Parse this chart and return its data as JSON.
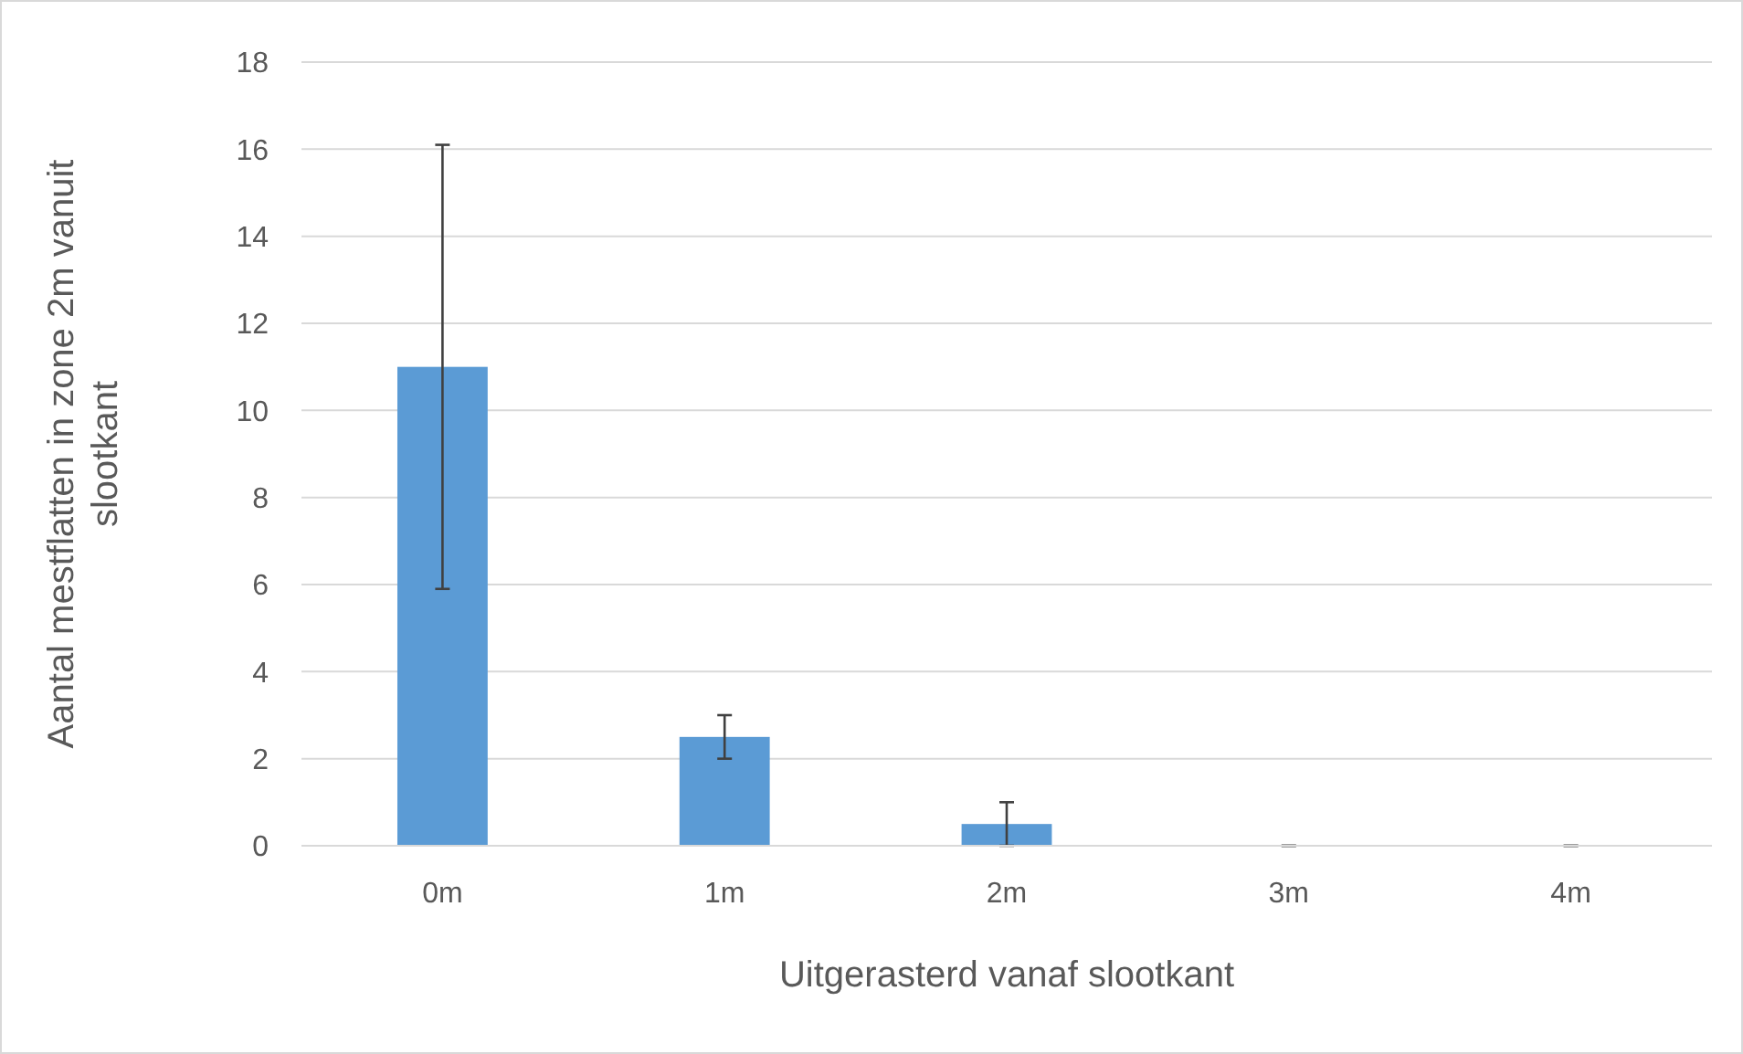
{
  "chart_data": {
    "type": "bar",
    "xlabel": "Uitgerasterd vanaf slootkant",
    "ylabel": "Aantal mestflatten in zone 2m vanuit slootkant",
    "categories": [
      "0m",
      "1m",
      "2m",
      "3m",
      "4m"
    ],
    "values": [
      11,
      2.5,
      0.5,
      0,
      0
    ],
    "errors": [
      5.1,
      0.5,
      0.5,
      0,
      0
    ],
    "color": "#5b9bd5",
    "ylim": [
      0,
      18
    ],
    "yticks": [
      0,
      2,
      4,
      6,
      8,
      10,
      12,
      14,
      16,
      18
    ],
    "grid": "y"
  }
}
